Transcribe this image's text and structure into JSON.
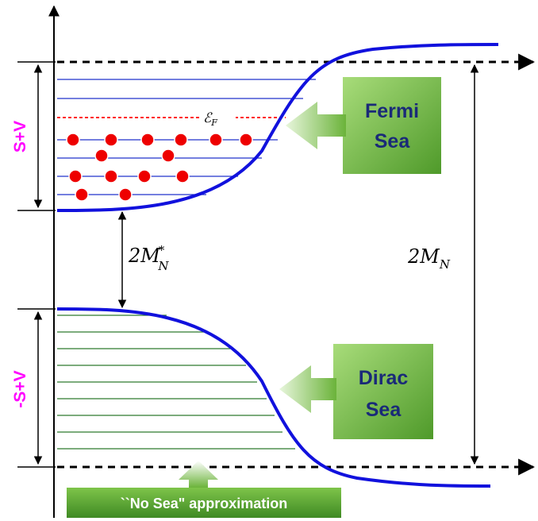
{
  "labels": {
    "positive_potential": "S+V",
    "negative_potential": "-S+V",
    "fermi_energy": "εF",
    "effective_gap": "2M*N",
    "full_gap": "2MN"
  },
  "boxes": {
    "fermi": {
      "line1": "Fermi",
      "line2": "Sea"
    },
    "dirac": {
      "line1": "Dirac",
      "line2": "Sea"
    },
    "no_sea": "``No Sea\" approximation"
  },
  "colors": {
    "curve": "#1111dd",
    "fermi_levels": "#2233cc",
    "dirac_levels": "#2d7a2d",
    "fermi_line": "#ff2222",
    "particles": "#ee0000",
    "side_labels": "#ff00ff",
    "box_green": "#6bb33a",
    "box_text": "#1a2a78"
  }
}
